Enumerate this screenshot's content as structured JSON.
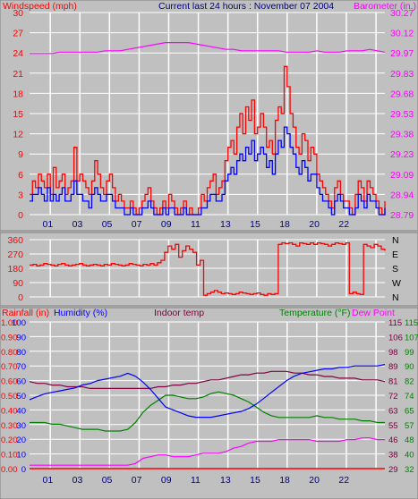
{
  "header": {
    "subtitle": "Current last 24 hours : November 07 2004"
  },
  "colors": {
    "background": "#c0c0c0",
    "grid": "#ffffff",
    "wind_avg": "#0000ff",
    "wind_gust": "#ff0000",
    "barometer": "#ff00ff",
    "direction": "#ff0000",
    "rainfall": "#ff0000",
    "humidity": "#0000ff",
    "indoor_temp": "#800040",
    "temperature": "#008000",
    "dew_point": "#ff00ff"
  },
  "chart_data": [
    {
      "type": "line",
      "name": "wind-barometer",
      "labels": {
        "left": "Windspeed (mph)",
        "right": "Barometer (in.)"
      },
      "x_hours": [
        "01",
        "03",
        "05",
        "07",
        "09",
        "11",
        "13",
        "15",
        "18",
        "20",
        "22"
      ],
      "y_left": {
        "ticks": [
          0,
          3,
          6,
          9,
          12,
          15,
          18,
          21,
          24,
          27,
          30
        ],
        "range": [
          0,
          30
        ],
        "unit": "mph"
      },
      "y_right": {
        "ticks": [
          "28.79",
          "28.94",
          "29.09",
          "29.23",
          "29.38",
          "29.53",
          "29.68",
          "29.83",
          "29.97",
          "30.12",
          "30.27"
        ],
        "range": [
          28.79,
          30.27
        ],
        "unit": "in"
      },
      "wind_gust_mph": [
        3,
        5,
        4,
        6,
        5,
        4,
        6,
        3,
        7,
        4,
        5,
        6,
        3,
        4,
        5,
        10,
        5,
        6,
        5,
        4,
        3,
        5,
        8,
        6,
        4,
        3,
        5,
        6,
        4,
        2,
        3,
        2,
        1,
        1,
        2,
        1,
        0,
        1,
        2,
        3,
        4,
        2,
        1,
        0,
        1,
        2,
        1,
        3,
        2,
        1,
        0,
        1,
        2,
        0,
        1,
        0,
        0,
        1,
        3,
        2,
        4,
        5,
        6,
        3,
        4,
        5,
        8,
        10,
        11,
        9,
        13,
        15,
        12,
        16,
        14,
        17,
        12,
        13,
        15,
        13,
        10,
        11,
        9,
        14,
        16,
        15,
        22,
        19,
        15,
        13,
        10,
        9,
        12,
        11,
        8,
        10,
        9,
        6,
        5,
        4,
        3,
        2,
        1,
        4,
        5,
        3,
        2,
        2,
        1,
        0,
        3,
        5,
        4,
        2,
        5,
        4,
        3,
        2,
        1,
        0,
        2
      ],
      "wind_avg_mph": [
        2,
        3,
        3,
        4,
        3,
        2,
        4,
        2,
        3,
        2,
        3,
        4,
        2,
        2,
        3,
        5,
        3,
        3,
        2,
        2,
        1,
        3,
        4,
        3,
        2,
        2,
        3,
        3,
        2,
        1,
        1,
        1,
        0,
        0,
        1,
        0,
        0,
        0,
        1,
        1,
        2,
        1,
        0,
        0,
        0,
        1,
        0,
        1,
        1,
        0,
        0,
        0,
        1,
        0,
        0,
        0,
        0,
        0,
        1,
        1,
        2,
        3,
        3,
        2,
        2,
        3,
        5,
        6,
        7,
        6,
        8,
        9,
        8,
        10,
        9,
        11,
        8,
        9,
        10,
        9,
        7,
        8,
        6,
        9,
        11,
        10,
        13,
        12,
        10,
        9,
        7,
        6,
        8,
        7,
        5,
        6,
        6,
        4,
        3,
        2,
        2,
        1,
        0,
        2,
        3,
        2,
        1,
        1,
        0,
        0,
        1,
        3,
        2,
        1,
        3,
        2,
        2,
        1,
        0,
        0,
        1
      ],
      "barometer_in": [
        29.97,
        29.97,
        29.97,
        29.97,
        29.98,
        29.98,
        29.98,
        29.98,
        29.98,
        29.98,
        29.99,
        29.99,
        29.99,
        30.0,
        30.01,
        30.02,
        30.03,
        30.04,
        30.05,
        30.05,
        30.05,
        30.05,
        30.04,
        30.03,
        30.02,
        30.01,
        30.0,
        30.0,
        29.99,
        29.99,
        29.99,
        29.99,
        29.99,
        29.99,
        29.98,
        29.98,
        29.98,
        29.98,
        29.99,
        29.98,
        29.98,
        29.98,
        29.99,
        29.99,
        29.99,
        30.0,
        29.99,
        29.98
      ]
    },
    {
      "type": "scatter",
      "name": "wind-direction",
      "y_left": {
        "ticks": [
          0,
          90,
          180,
          270,
          360
        ],
        "range": [
          0,
          360
        ],
        "unit": "deg"
      },
      "y_right_labels": [
        "N",
        "W",
        "S",
        "E",
        "N"
      ],
      "direction_deg": [
        200,
        205,
        195,
        200,
        210,
        205,
        200,
        195,
        205,
        210,
        200,
        195,
        200,
        205,
        210,
        200,
        195,
        200,
        205,
        200,
        195,
        205,
        200,
        210,
        205,
        200,
        195,
        200,
        210,
        205,
        200,
        195,
        205,
        200,
        210,
        200,
        215,
        230,
        280,
        320,
        300,
        330,
        250,
        290,
        320,
        300,
        280,
        200,
        230,
        10,
        20,
        30,
        40,
        30,
        20,
        25,
        20,
        15,
        20,
        30,
        25,
        20,
        15,
        20,
        25,
        15,
        10,
        20,
        15,
        20,
        330,
        340,
        335,
        340,
        330,
        320,
        340,
        335,
        330,
        340,
        330,
        340,
        335,
        330,
        320,
        330,
        340,
        335,
        330,
        340,
        20,
        30,
        20,
        15,
        330,
        320,
        310,
        330,
        320,
        300,
        290
      ],
      "x_hours": [
        "01",
        "03",
        "05",
        "07",
        "09",
        "11",
        "13",
        "15",
        "18",
        "20",
        "22"
      ]
    },
    {
      "type": "line",
      "name": "rain-humidity-temperature",
      "labels": {
        "rainfall": "Rainfall (in)",
        "humidity": "Humidity (%)",
        "indoor": "Indoor temp",
        "temperature": "Temperature (°F)",
        "dew": "Dew Point"
      },
      "x_hours": [
        "01",
        "03",
        "05",
        "07",
        "09",
        "11",
        "13",
        "15",
        "18",
        "20",
        "22"
      ],
      "y_rain": {
        "ticks": [
          "0.00",
          "0.10",
          "0.20",
          "0.30",
          "0.40",
          "0.50",
          "0.60",
          "0.70",
          "0.80",
          "0.90",
          "1.00"
        ],
        "range": [
          0,
          1.0
        ],
        "unit": "in"
      },
      "y_humidity": {
        "ticks": [
          0,
          10,
          20,
          30,
          40,
          50,
          60,
          70,
          80,
          90,
          100
        ],
        "range": [
          0,
          100
        ],
        "unit": "%"
      },
      "y_temp_a": {
        "ticks": [
          29,
          38,
          46,
          55,
          63,
          72,
          81,
          89,
          98,
          106,
          115
        ],
        "range": [
          29,
          115
        ],
        "unit": "°F"
      },
      "y_temp_b": {
        "ticks": [
          32,
          40,
          48,
          57,
          65,
          74,
          82,
          90,
          99,
          107,
          115
        ],
        "range": [
          32,
          115
        ],
        "unit": "°F"
      },
      "humidity_pct": [
        47,
        49,
        51,
        52,
        53,
        54,
        55,
        57,
        58,
        60,
        61,
        62,
        63,
        65,
        63,
        59,
        54,
        48,
        42,
        40,
        38,
        36,
        35,
        35,
        35,
        36,
        37,
        38,
        39,
        41,
        44,
        48,
        52,
        56,
        60,
        63,
        65,
        66,
        67,
        68,
        68,
        69,
        69,
        70,
        70,
        70,
        70,
        71
      ],
      "indoor_f": [
        80,
        79,
        79,
        78,
        78,
        77,
        77,
        77,
        76,
        76,
        76,
        76,
        76,
        76,
        76,
        76,
        76,
        77,
        77,
        78,
        78,
        79,
        79,
        80,
        81,
        81,
        82,
        83,
        84,
        84,
        85,
        85,
        86,
        86,
        86,
        85,
        85,
        84,
        84,
        83,
        83,
        82,
        82,
        82,
        81,
        81,
        81,
        80
      ],
      "temperature_f": [
        56,
        56,
        56,
        55,
        55,
        54,
        53,
        52,
        52,
        52,
        51,
        51,
        51,
        52,
        56,
        62,
        66,
        69,
        72,
        72,
        71,
        70,
        70,
        71,
        73,
        74,
        73,
        72,
        70,
        68,
        65,
        62,
        60,
        59,
        59,
        59,
        59,
        59,
        60,
        59,
        59,
        58,
        58,
        58,
        57,
        57,
        56,
        56
      ],
      "dew_point_f": [
        31,
        31,
        31,
        31,
        31,
        31,
        31,
        31,
        31,
        31,
        31,
        31,
        31,
        31,
        32,
        35,
        36,
        37,
        37,
        36,
        36,
        36,
        37,
        38,
        38,
        38,
        39,
        41,
        42,
        44,
        45,
        45,
        45,
        46,
        46,
        46,
        46,
        46,
        45,
        45,
        45,
        45,
        46,
        46,
        47,
        47,
        46,
        46
      ],
      "rainfall_in": [
        0,
        0,
        0,
        0,
        0,
        0,
        0,
        0,
        0,
        0,
        0,
        0,
        0,
        0,
        0,
        0,
        0,
        0,
        0,
        0,
        0,
        0,
        0,
        0,
        0,
        0,
        0,
        0,
        0,
        0,
        0,
        0,
        0,
        0,
        0,
        0,
        0,
        0,
        0,
        0,
        0,
        0,
        0,
        0,
        0,
        0,
        0,
        0
      ]
    }
  ]
}
